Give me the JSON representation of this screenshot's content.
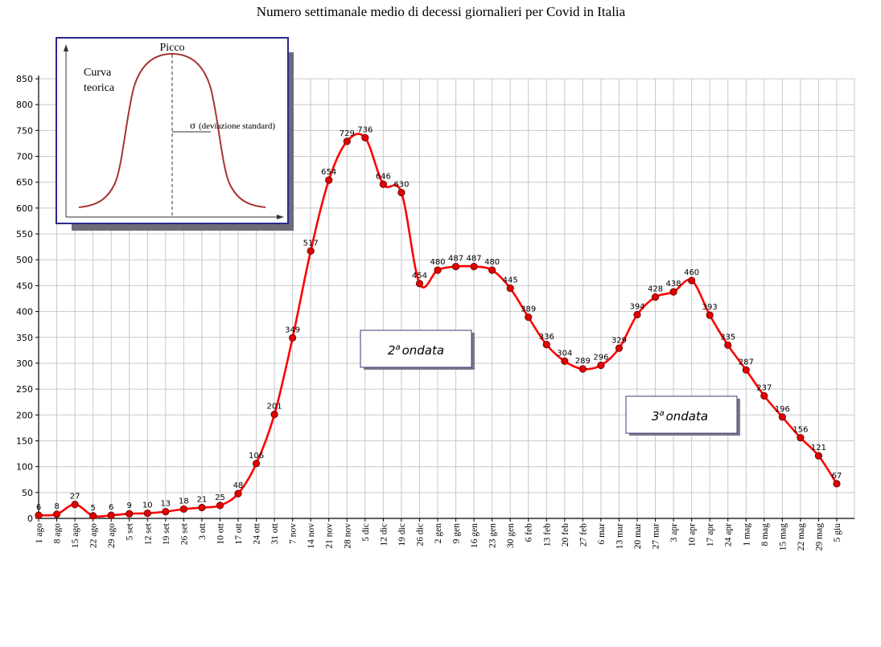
{
  "chart_data": {
    "type": "line",
    "title": "Numero settimanale medio di decessi giornalieri per Covid in Italia",
    "x": [
      "1 ago",
      "8 ago",
      "15 ago",
      "22 ago",
      "29 ago",
      "5 set",
      "12 set",
      "19 set",
      "26 set",
      "3 ott",
      "10 ott",
      "17 ott",
      "24 ott",
      "31 ott",
      "7 nov",
      "14 nov",
      "21 nov",
      "28 nov",
      "5 dic",
      "12 dic",
      "19 dic",
      "26 dic",
      "2 gen",
      "9 gen",
      "16 gen",
      "23 gen",
      "30 gen",
      "6 feb",
      "13 feb",
      "20 feb",
      "27 feb",
      "6 mar",
      "13 mar",
      "20 mar",
      "27 mar",
      "3 apr",
      "10 apr",
      "17 apr",
      "24 apr",
      "1 mag",
      "8 mag",
      "15 mag",
      "22 mag",
      "29 mag",
      "5 giu"
    ],
    "values": [
      6,
      8,
      27,
      5,
      6,
      9,
      10,
      13,
      18,
      21,
      25,
      48,
      106,
      201,
      349,
      517,
      654,
      729,
      736,
      646,
      630,
      454,
      480,
      487,
      487,
      480,
      445,
      389,
      336,
      304,
      289,
      296,
      329,
      394,
      428,
      438,
      460,
      393,
      335,
      287,
      237,
      196,
      156,
      121,
      67
    ],
    "ylim": [
      0,
      850
    ],
    "yticks": [
      0,
      50,
      100,
      150,
      200,
      250,
      300,
      350,
      400,
      450,
      500,
      550,
      600,
      650,
      700,
      750,
      800,
      850
    ],
    "grid": true,
    "line_color": "#ff0000",
    "marker_color": "#e00000",
    "annotations": [
      {
        "sup": "2",
        "text": "ondata",
        "prefix_sup": "a"
      },
      {
        "sup": "3",
        "text": "ondata",
        "prefix_sup": "a"
      }
    ]
  },
  "inset": {
    "peak_label": "Picco",
    "curve_label_1": "Curva",
    "curve_label_2": "teorica",
    "sigma_symbol": "σ",
    "sigma_text": "(deviazione standard)"
  }
}
